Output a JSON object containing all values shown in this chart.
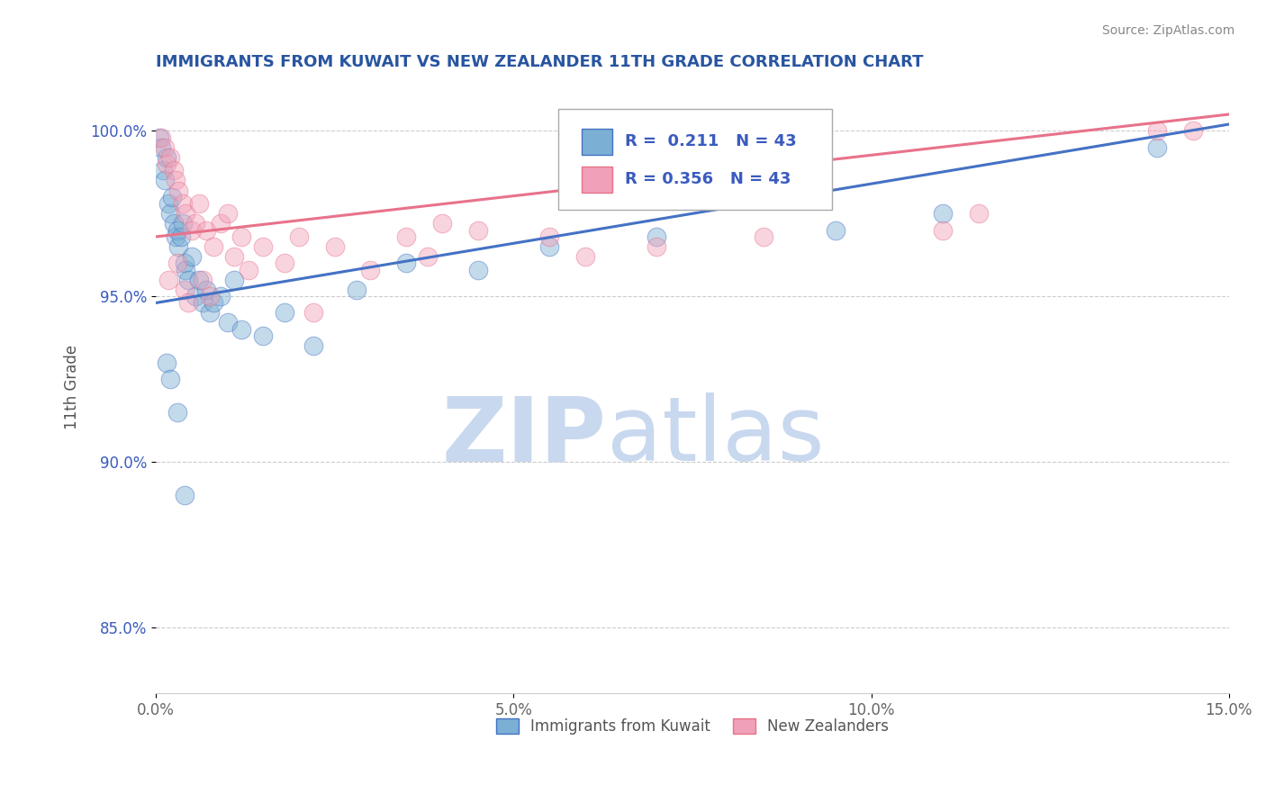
{
  "title": "IMMIGRANTS FROM KUWAIT VS NEW ZEALANDER 11TH GRADE CORRELATION CHART",
  "source_text": "Source: ZipAtlas.com",
  "ylabel": "11th Grade",
  "xlim": [
    0.0,
    15.0
  ],
  "ylim": [
    83.0,
    101.5
  ],
  "x_ticks": [
    0.0,
    5.0,
    10.0,
    15.0
  ],
  "x_tick_labels": [
    "0.0%",
    "5.0%",
    "10.0%",
    "15.0%"
  ],
  "y_ticks": [
    85.0,
    90.0,
    95.0,
    100.0
  ],
  "y_tick_labels": [
    "85.0%",
    "90.0%",
    "95.0%",
    "100.0%"
  ],
  "legend_entries": [
    {
      "label": "Immigrants from Kuwait",
      "R": "0.211",
      "N": "43"
    },
    {
      "label": "New Zealanders",
      "R": "0.356",
      "N": "43"
    }
  ],
  "blue_scatter_x": [
    0.05,
    0.08,
    0.1,
    0.12,
    0.15,
    0.18,
    0.2,
    0.22,
    0.25,
    0.28,
    0.3,
    0.32,
    0.35,
    0.38,
    0.4,
    0.42,
    0.45,
    0.5,
    0.55,
    0.6,
    0.65,
    0.7,
    0.75,
    0.8,
    0.9,
    1.0,
    1.1,
    1.2,
    1.5,
    1.8,
    2.2,
    2.8,
    3.5,
    4.5,
    5.5,
    7.0,
    9.5,
    11.0,
    14.0,
    0.15,
    0.2,
    0.3,
    0.4
  ],
  "blue_scatter_y": [
    99.8,
    99.5,
    98.8,
    98.5,
    99.2,
    97.8,
    97.5,
    98.0,
    97.2,
    96.8,
    97.0,
    96.5,
    96.8,
    97.2,
    96.0,
    95.8,
    95.5,
    96.2,
    95.0,
    95.5,
    94.8,
    95.2,
    94.5,
    94.8,
    95.0,
    94.2,
    95.5,
    94.0,
    93.8,
    94.5,
    93.5,
    95.2,
    96.0,
    95.8,
    96.5,
    96.8,
    97.0,
    97.5,
    99.5,
    93.0,
    92.5,
    91.5,
    89.0
  ],
  "pink_scatter_x": [
    0.08,
    0.12,
    0.15,
    0.2,
    0.25,
    0.28,
    0.32,
    0.38,
    0.42,
    0.5,
    0.55,
    0.6,
    0.7,
    0.8,
    0.9,
    1.0,
    1.2,
    1.5,
    1.8,
    2.0,
    2.5,
    3.0,
    3.8,
    4.5,
    5.5,
    7.0,
    11.0,
    14.0,
    0.18,
    0.3,
    0.4,
    0.45,
    0.65,
    0.75,
    1.1,
    1.3,
    2.2,
    3.5,
    4.0,
    6.0,
    8.5,
    11.5,
    14.5
  ],
  "pink_scatter_y": [
    99.8,
    99.5,
    99.0,
    99.2,
    98.8,
    98.5,
    98.2,
    97.8,
    97.5,
    97.0,
    97.2,
    97.8,
    97.0,
    96.5,
    97.2,
    97.5,
    96.8,
    96.5,
    96.0,
    96.8,
    96.5,
    95.8,
    96.2,
    97.0,
    96.8,
    96.5,
    97.0,
    100.0,
    95.5,
    96.0,
    95.2,
    94.8,
    95.5,
    95.0,
    96.2,
    95.8,
    94.5,
    96.8,
    97.2,
    96.2,
    96.8,
    97.5,
    100.0
  ],
  "blue_line_color": "#4472c4",
  "pink_line_color": "#e8728a",
  "scatter_blue_color": "#7bafd4",
  "scatter_pink_color": "#f0a0b8",
  "title_color": "#2855a0",
  "watermark_zip": "ZIP",
  "watermark_atlas": "atlas",
  "watermark_color_zip": "#c8d8ee",
  "watermark_color_atlas": "#c8d8ee",
  "grid_color": "#cccccc",
  "legend_r_n_color": "#3a5bbf",
  "legend_label_color": "#555555"
}
